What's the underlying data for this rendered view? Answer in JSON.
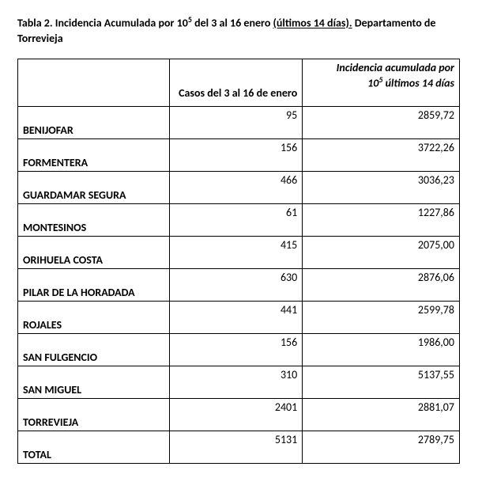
{
  "title": {
    "pre": "Tabla 2. Incidencia Acumulada por 10",
    "sup": "5",
    "mid": " del 3 al 16 enero ",
    "underline": "(últimos 14 días).",
    "post": " Departamento de Torrevieja"
  },
  "headers": {
    "cases": "Casos del 3 al 16 de enero",
    "inc_line1": "Incidencia acumulada por",
    "inc_line2_pre": "10",
    "inc_sup": "5",
    "inc_line2_post": " últimos 14 días"
  },
  "rows": [
    {
      "name": "BENIJOFAR",
      "cases": "95",
      "inc": "2859,72"
    },
    {
      "name": "FORMENTERA",
      "cases": "156",
      "inc": "3722,26"
    },
    {
      "name": "GUARDAMAR SEGURA",
      "cases": "466",
      "inc": "3036,23"
    },
    {
      "name": "MONTESINOS",
      "cases": "61",
      "inc": "1227,86"
    },
    {
      "name": "ORIHUELA COSTA",
      "cases": "415",
      "inc": "2075,00"
    },
    {
      "name": "PILAR DE LA HORADADA",
      "cases": "630",
      "inc": "2876,06"
    },
    {
      "name": "ROJALES",
      "cases": "441",
      "inc": "2599,78"
    },
    {
      "name": "SAN FULGENCIO",
      "cases": "156",
      "inc": "1986,00"
    },
    {
      "name": "SAN MIGUEL",
      "cases": "310",
      "inc": "5137,55"
    },
    {
      "name": "TORREVIEJA",
      "cases": "2401",
      "inc": "2881,07"
    },
    {
      "name": "TOTAL",
      "cases": "5131",
      "inc": "2789,75"
    }
  ]
}
